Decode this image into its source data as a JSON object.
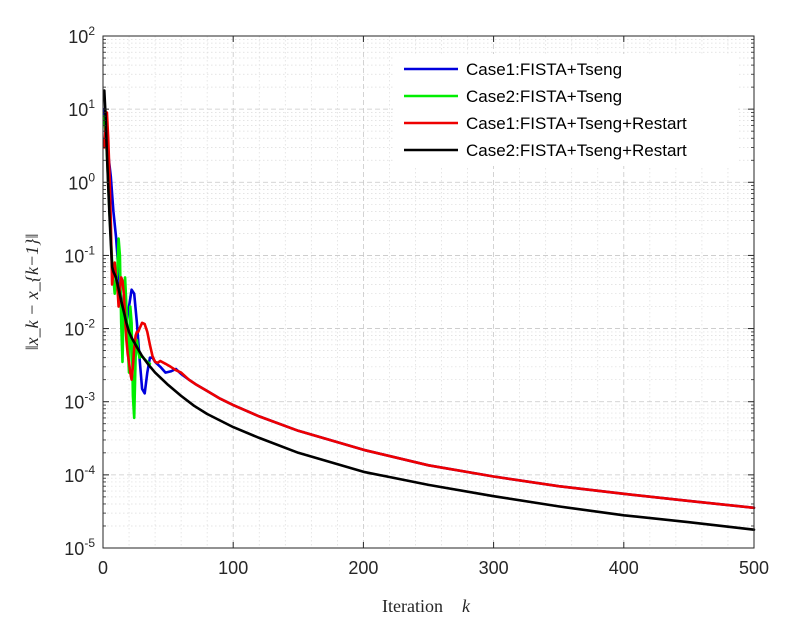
{
  "chart_data": {
    "type": "line",
    "title": "",
    "xlabel": "Iteration",
    "xlabel_var": "k",
    "ylabel": "‖x_k − x_{k−1}‖",
    "xlim": [
      0,
      500
    ],
    "ylim": [
      1e-05,
      100
    ],
    "yscale": "log",
    "grid": true,
    "minor_grid": true,
    "legend_position": "top-right",
    "x_ticks": [
      {
        "value": 0,
        "label": "0"
      },
      {
        "value": 100,
        "label": "100"
      },
      {
        "value": 200,
        "label": "200"
      },
      {
        "value": 300,
        "label": "300"
      },
      {
        "value": 400,
        "label": "400"
      },
      {
        "value": 500,
        "label": "500"
      }
    ],
    "y_ticks": [
      {
        "value": 100,
        "base": "10",
        "exp": "2"
      },
      {
        "value": 10,
        "base": "10",
        "exp": "1"
      },
      {
        "value": 1,
        "base": "10",
        "exp": "0"
      },
      {
        "value": 0.1,
        "base": "10",
        "exp": "-1"
      },
      {
        "value": 0.01,
        "base": "10",
        "exp": "-2"
      },
      {
        "value": 0.001,
        "base": "10",
        "exp": "-3"
      },
      {
        "value": 0.0001,
        "base": "10",
        "exp": "-4"
      },
      {
        "value": 1e-05,
        "base": "10",
        "exp": "-5"
      }
    ],
    "series": [
      {
        "name": "Case1:FISTA+Tseng",
        "color": "#0000dd",
        "x": [
          1,
          3,
          6,
          8,
          10,
          12,
          14,
          16,
          18,
          20,
          22,
          24,
          26,
          28,
          30,
          32,
          34,
          36,
          38,
          40,
          44,
          48,
          52,
          56,
          60,
          66,
          72,
          80,
          90,
          100,
          120,
          150,
          200,
          250,
          300,
          350,
          400,
          450,
          500
        ],
        "y": [
          10,
          3.5,
          1.2,
          0.4,
          0.18,
          0.06,
          0.025,
          0.013,
          0.012,
          0.02,
          0.034,
          0.03,
          0.012,
          0.004,
          0.0015,
          0.0013,
          0.0025,
          0.004,
          0.004,
          0.0035,
          0.003,
          0.0025,
          0.0026,
          0.0028,
          0.0024,
          0.002,
          0.0017,
          0.0014,
          0.0011,
          0.0009,
          0.00063,
          0.0004,
          0.00022,
          0.000135,
          9.5e-05,
          7e-05,
          5.5e-05,
          4.4e-05,
          3.55e-05
        ]
      },
      {
        "name": "Case2:FISTA+Tseng",
        "color": "#00ee00",
        "x": [
          1,
          3,
          5,
          7,
          9,
          11,
          12,
          13,
          14,
          15,
          16,
          17,
          18,
          19,
          20,
          21,
          22,
          23,
          24,
          25,
          26,
          27,
          28,
          30,
          32,
          34,
          36
        ],
        "y": [
          8,
          2.5,
          0.4,
          0.08,
          0.03,
          0.06,
          0.17,
          0.1,
          0.012,
          0.0035,
          0.03,
          0.05,
          0.02,
          0.006,
          0.0025,
          0.02,
          0.012,
          0.0012,
          0.0006,
          0.004,
          0.007,
          0.005,
          0.004,
          0.0042,
          0.0038,
          0.0035,
          0.0033
        ]
      },
      {
        "name": "Case1:FISTA+Tseng+Restart",
        "color": "#ee0000",
        "x": [
          1,
          2,
          3,
          4,
          5,
          6,
          7,
          8,
          9,
          10,
          11,
          12,
          13,
          14,
          15,
          16,
          17,
          18,
          19,
          20,
          21,
          22,
          23,
          24,
          25,
          26,
          27,
          28,
          30,
          32,
          34,
          36,
          38,
          40,
          42,
          44,
          48,
          52,
          56,
          60,
          66,
          72,
          80,
          90,
          100,
          120,
          150,
          200,
          250,
          300,
          350,
          400,
          450,
          500
        ],
        "y": [
          3.0,
          5.5,
          9.0,
          4.0,
          1.3,
          0.3,
          0.04,
          0.06,
          0.08,
          0.05,
          0.04,
          0.02,
          0.035,
          0.05,
          0.045,
          0.03,
          0.015,
          0.007,
          0.0045,
          0.0035,
          0.0025,
          0.002,
          0.003,
          0.0055,
          0.008,
          0.009,
          0.009,
          0.01,
          0.012,
          0.0115,
          0.009,
          0.006,
          0.0042,
          0.0035,
          0.0034,
          0.0036,
          0.0033,
          0.003,
          0.0027,
          0.0025,
          0.002,
          0.0017,
          0.0014,
          0.0011,
          0.0009,
          0.00063,
          0.0004,
          0.00022,
          0.000135,
          9.5e-05,
          7e-05,
          5.5e-05,
          4.4e-05,
          3.55e-05
        ]
      },
      {
        "name": "Case2:FISTA+Tseng+Restart",
        "color": "#000000",
        "x": [
          1,
          2,
          3,
          4,
          5,
          6,
          7,
          8,
          10,
          12,
          14,
          16,
          18,
          20,
          22,
          25,
          30,
          35,
          40,
          50,
          60,
          70,
          80,
          100,
          120,
          150,
          200,
          250,
          300,
          350,
          400,
          450,
          500
        ],
        "y": [
          18,
          8,
          2.5,
          0.9,
          0.35,
          0.15,
          0.07,
          0.06,
          0.05,
          0.035,
          0.024,
          0.017,
          0.012,
          0.009,
          0.0075,
          0.006,
          0.0042,
          0.0032,
          0.0025,
          0.0017,
          0.0012,
          0.00088,
          0.00068,
          0.00045,
          0.00032,
          0.0002,
          0.00011,
          7.3e-05,
          5.1e-05,
          3.7e-05,
          2.8e-05,
          2.25e-05,
          1.78e-05
        ]
      }
    ]
  }
}
